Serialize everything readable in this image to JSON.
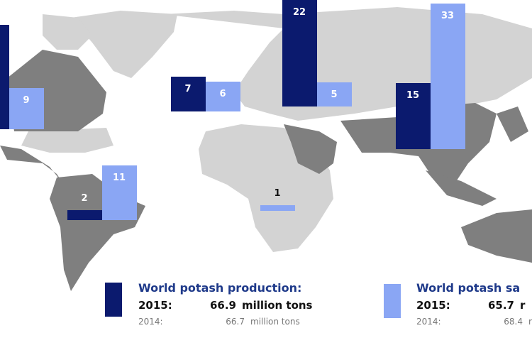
{
  "colors": {
    "production": "#0b1a6e",
    "sales": "#8aa6f4",
    "map_light": "#d3d3d3",
    "map_dark": "#7f7f7f"
  },
  "chart_data": {
    "type": "bar",
    "unit": "million tons",
    "series": [
      {
        "name": "World potash production",
        "color": "#0b1a6e"
      },
      {
        "name": "World potash sales",
        "color": "#8aa6f4"
      }
    ],
    "regions": [
      {
        "region": "North America",
        "production": null,
        "sales": 9,
        "production_label": "",
        "sales_label": "9"
      },
      {
        "region": "South America",
        "production": 2,
        "sales": 11,
        "production_label": "2",
        "sales_label": "11"
      },
      {
        "region": "Western Europe",
        "production": 7,
        "sales": 6,
        "production_label": "7",
        "sales_label": "6"
      },
      {
        "region": "Russia",
        "production": 22,
        "sales": 5,
        "production_label": "22",
        "sales_label": "5"
      },
      {
        "region": "Africa",
        "production": null,
        "sales": 1,
        "production_label": "",
        "sales_label": "1"
      },
      {
        "region": "Asia",
        "production": 15,
        "sales": 33,
        "production_label": "15",
        "sales_label": "33"
      }
    ]
  },
  "legend": {
    "production": {
      "title": "World potash production:",
      "y2015": "2015:",
      "v2015": "66.9",
      "u2015": "million tons",
      "y2014": "2014:",
      "v2014": "66.7",
      "u2014": "million tons"
    },
    "sales": {
      "title": "World potash sa",
      "y2015": "2015:",
      "v2015": "65.7",
      "u2015": "r",
      "y2014": "2014:",
      "v2014": "68.4",
      "u2014": "r"
    }
  }
}
